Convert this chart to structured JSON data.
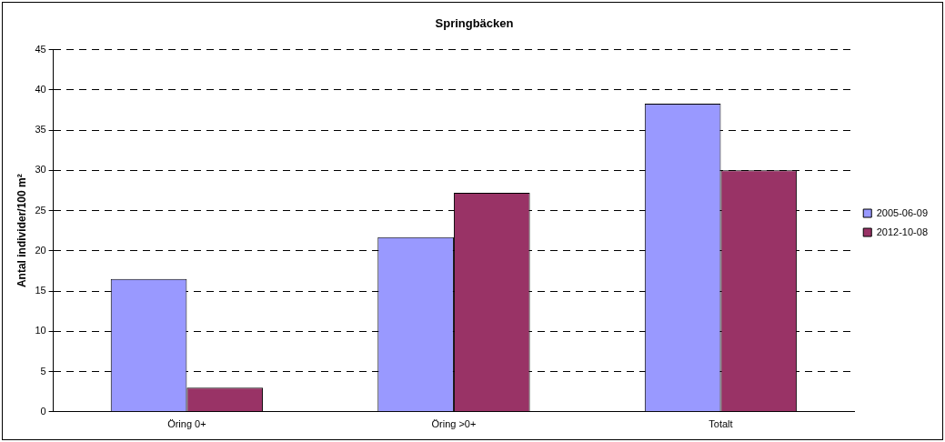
{
  "chart_data": {
    "type": "bar",
    "title": "Springbäcken",
    "ylabel": "Antal individer/100 m²",
    "categories": [
      "Öring 0+",
      "Öring >0+",
      "Totalt"
    ],
    "series": [
      {
        "name": "2005-06-09",
        "color": "#9999ff",
        "values": [
          16.5,
          21.7,
          38.3
        ]
      },
      {
        "name": "2012-10-08",
        "color": "#993366",
        "values": [
          3.0,
          27.2,
          30.0
        ]
      }
    ],
    "ylim": [
      0,
      45
    ],
    "yticks": [
      0,
      5,
      10,
      15,
      20,
      25,
      30,
      35,
      40,
      45
    ],
    "grid": "y",
    "legend": "right"
  }
}
